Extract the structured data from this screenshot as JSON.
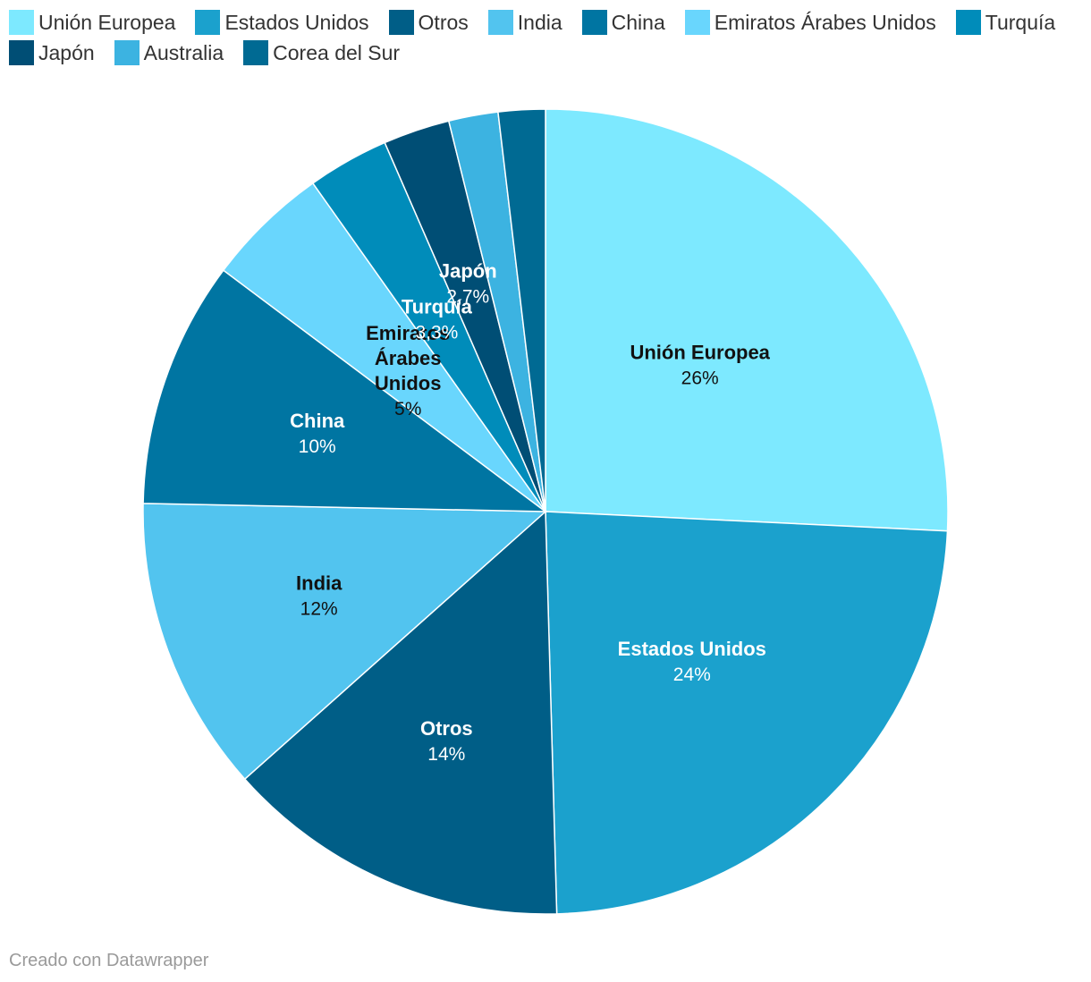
{
  "chart_data": {
    "type": "pie",
    "title": "",
    "slices": [
      {
        "label": "Unión Europea",
        "value": 26,
        "value_label": "26%",
        "color": "#7de9ff",
        "label_lines": [
          "Unión Europea"
        ],
        "text_color": "#111111",
        "show_label": true
      },
      {
        "label": "Estados Unidos",
        "value": 24,
        "value_label": "24%",
        "color": "#1ba1cd",
        "label_lines": [
          "Estados Unidos"
        ],
        "text_color": "#ffffff",
        "show_label": true
      },
      {
        "label": "Otros",
        "value": 14,
        "value_label": "14%",
        "color": "#005e87",
        "label_lines": [
          "Otros"
        ],
        "text_color": "#ffffff",
        "show_label": true
      },
      {
        "label": "India",
        "value": 12,
        "value_label": "12%",
        "color": "#52c4ef",
        "label_lines": [
          "India"
        ],
        "text_color": "#111111",
        "show_label": true
      },
      {
        "label": "China",
        "value": 10,
        "value_label": "10%",
        "color": "#0075a2",
        "label_lines": [
          "China"
        ],
        "text_color": "#ffffff",
        "show_label": true
      },
      {
        "label": "Emiratos Árabes Unidos",
        "value": 5,
        "value_label": "5%",
        "color": "#69d6fd",
        "label_lines": [
          "Emiratos",
          "Árabes",
          "Unidos"
        ],
        "text_color": "#111111",
        "show_label": true
      },
      {
        "label": "Turquía",
        "value": 3.3,
        "value_label": "3,3%",
        "color": "#008cba",
        "label_lines": [
          "Turquía"
        ],
        "text_color": "#ffffff",
        "show_label": true
      },
      {
        "label": "Japón",
        "value": 2.7,
        "value_label": "2,7%",
        "color": "#004e75",
        "label_lines": [
          "Japón"
        ],
        "text_color": "#ffffff",
        "show_label": true
      },
      {
        "label": "Australia",
        "value": 2.0,
        "value_label": "2%",
        "color": "#3cb3e1",
        "label_lines": [
          "Australia"
        ],
        "text_color": "#111111",
        "show_label": false
      },
      {
        "label": "Corea del Sur",
        "value": 1.9,
        "value_label": "1,9%",
        "color": "#006a93",
        "label_lines": [
          "Corea del Sur"
        ],
        "text_color": "#ffffff",
        "show_label": false
      }
    ],
    "legend_position": "top-left"
  },
  "footer": {
    "credit": "Creado con Datawrapper"
  }
}
